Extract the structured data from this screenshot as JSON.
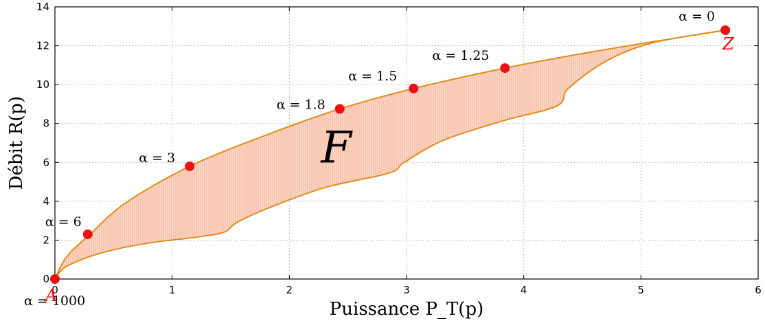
{
  "chart_data": {
    "type": "area",
    "xlabel": "Puissance P_T(p)",
    "ylabel": "Débit R(p)",
    "xlim": [
      0,
      6
    ],
    "ylim": [
      0,
      14
    ],
    "xticks": [
      0,
      1,
      2,
      3,
      4,
      5,
      6
    ],
    "yticks": [
      0,
      2,
      4,
      6,
      8,
      10,
      12,
      14
    ],
    "grid": true,
    "region_label": "F",
    "colors": {
      "fill": "#f9c9b6",
      "edge": "#e08c1a",
      "point": "#ee1111",
      "endpoint_label": "#e8000b"
    },
    "upper_boundary": {
      "x": [
        0,
        0.1,
        0.3,
        0.6,
        1.15,
        1.8,
        2.43,
        3.06,
        3.84,
        4.5,
        5.2,
        5.72
      ],
      "y": [
        0,
        1.15,
        2.3,
        3.9,
        5.8,
        7.4,
        8.75,
        9.8,
        10.85,
        11.6,
        12.3,
        12.8
      ]
    },
    "lower_boundary": {
      "x": [
        0,
        0.1,
        0.4,
        0.8,
        1.2,
        1.44,
        1.55,
        1.8,
        2.3,
        2.85,
        2.98,
        3.3,
        3.8,
        4.28,
        4.38,
        4.7,
        5.1,
        5.72
      ],
      "y": [
        0,
        0.65,
        1.35,
        1.85,
        2.15,
        2.4,
        2.9,
        3.6,
        4.7,
        5.45,
        6.0,
        7.1,
        8.1,
        8.9,
        9.8,
        11.2,
        12.15,
        12.8
      ]
    },
    "points": [
      {
        "label": "α = 1000",
        "x": 0.0,
        "y": 0.0
      },
      {
        "label": "α = 6",
        "x": 0.28,
        "y": 2.3
      },
      {
        "label": "α = 3",
        "x": 1.15,
        "y": 5.8
      },
      {
        "label": "α = 1.8",
        "x": 2.43,
        "y": 8.75
      },
      {
        "label": "α = 1.5",
        "x": 3.06,
        "y": 9.8
      },
      {
        "label": "α = 1.25",
        "x": 3.84,
        "y": 10.85
      },
      {
        "label": "α = 0",
        "x": 5.72,
        "y": 12.8
      }
    ],
    "endpoints": [
      {
        "label": "A",
        "x": 0.0,
        "y": 0.0
      },
      {
        "label": "Z",
        "x": 5.72,
        "y": 12.8
      }
    ]
  }
}
